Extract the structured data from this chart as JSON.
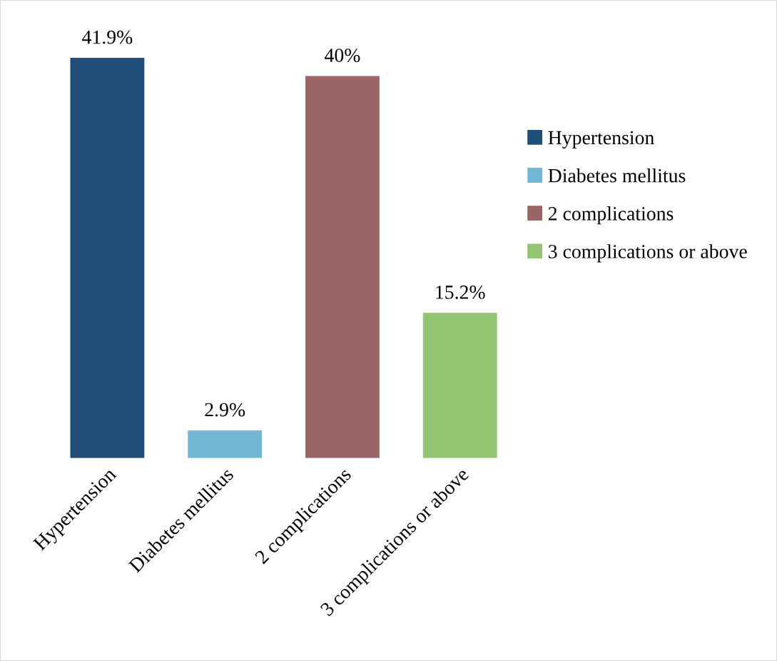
{
  "chart_data": {
    "type": "bar",
    "categories": [
      "Hypertension",
      "Diabetes mellitus",
      "2 complications",
      "3 complications or above"
    ],
    "series": [
      {
        "name": "Hypertension",
        "color": "#1f4e79",
        "values": [
          41.9,
          null,
          null,
          null
        ],
        "value_labels": [
          "41.9%",
          null,
          null,
          null
        ]
      },
      {
        "name": "Diabetes mellitus",
        "color": "#70b8d6",
        "values": [
          null,
          2.9,
          null,
          null
        ],
        "value_labels": [
          null,
          "2.9%",
          null,
          null
        ]
      },
      {
        "name": "2 complications",
        "color": "#9a6665",
        "values": [
          null,
          null,
          40,
          null
        ],
        "value_labels": [
          null,
          null,
          "40%",
          null
        ]
      },
      {
        "name": "3 complications or above",
        "color": "#93c572",
        "values": [
          null,
          null,
          null,
          15.2
        ],
        "value_labels": [
          null,
          null,
          null,
          "15.2%"
        ]
      }
    ],
    "legend": "right",
    "grid": false
  }
}
